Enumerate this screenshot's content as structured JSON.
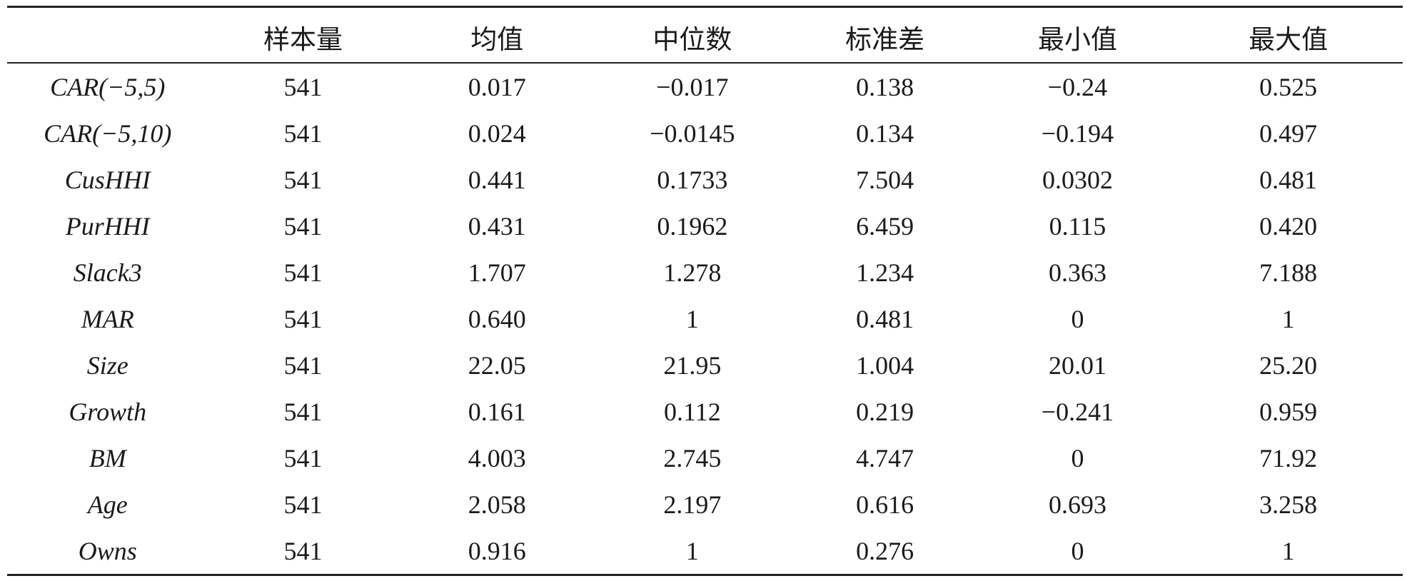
{
  "table": {
    "headers": [
      "",
      "样本量",
      "均值",
      "中位数",
      "标准差",
      "最小值",
      "最大值"
    ],
    "rows": [
      {
        "var": "CAR(−5,5)",
        "n": "541",
        "mean": "0.017",
        "median": "−0.017",
        "sd": "0.138",
        "min": "−0.24",
        "max": "0.525"
      },
      {
        "var": "CAR(−5,10)",
        "n": "541",
        "mean": "0.024",
        "median": "−0.0145",
        "sd": "0.134",
        "min": "−0.194",
        "max": "0.497"
      },
      {
        "var": "CusHHI",
        "n": "541",
        "mean": "0.441",
        "median": "0.1733",
        "sd": "7.504",
        "min": "0.0302",
        "max": "0.481"
      },
      {
        "var": "PurHHI",
        "n": "541",
        "mean": "0.431",
        "median": "0.1962",
        "sd": "6.459",
        "min": "0.115",
        "max": "0.420"
      },
      {
        "var": "Slack3",
        "n": "541",
        "mean": "1.707",
        "median": "1.278",
        "sd": "1.234",
        "min": "0.363",
        "max": "7.188"
      },
      {
        "var": "MAR",
        "n": "541",
        "mean": "0.640",
        "median": "1",
        "sd": "0.481",
        "min": "0",
        "max": "1"
      },
      {
        "var": "Size",
        "n": "541",
        "mean": "22.05",
        "median": "21.95",
        "sd": "1.004",
        "min": "20.01",
        "max": "25.20"
      },
      {
        "var": "Growth",
        "n": "541",
        "mean": "0.161",
        "median": "0.112",
        "sd": "0.219",
        "min": "−0.241",
        "max": "0.959"
      },
      {
        "var": "BM",
        "n": "541",
        "mean": "4.003",
        "median": "2.745",
        "sd": "4.747",
        "min": "0",
        "max": "71.92"
      },
      {
        "var": "Age",
        "n": "541",
        "mean": "2.058",
        "median": "2.197",
        "sd": "0.616",
        "min": "0.693",
        "max": "3.258"
      },
      {
        "var": "Owns",
        "n": "541",
        "mean": "0.916",
        "median": "1",
        "sd": "0.276",
        "min": "0",
        "max": "1"
      }
    ]
  }
}
